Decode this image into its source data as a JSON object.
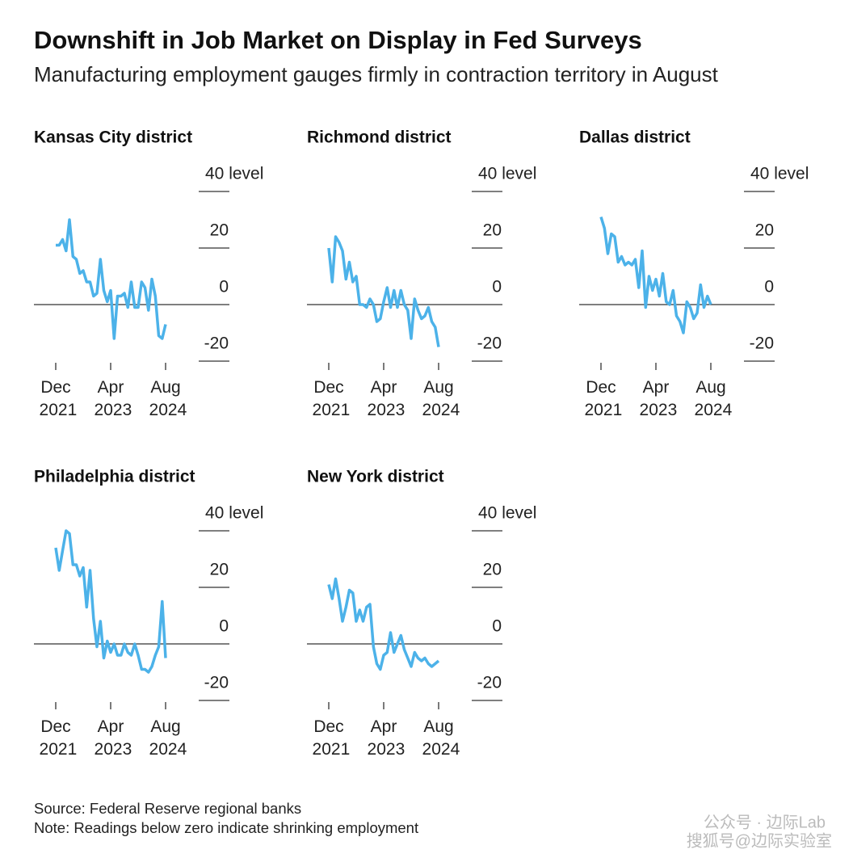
{
  "title": "Downshift in Job Market on Display in Fed Surveys",
  "subtitle": "Manufacturing employment gauges firmly in contraction territory in August",
  "source": "Source: Federal Reserve regional banks",
  "note": "Note: Readings below zero indicate shrinking employment",
  "watermark": [
    "公众号 · 边际Lab",
    "搜狐号@边际实验室"
  ],
  "chart_data": [
    {
      "type": "line",
      "title": "Kansas City district",
      "color": "#4cb2e9",
      "x": [
        "2021-12",
        "2022-01",
        "2022-02",
        "2022-03",
        "2022-04",
        "2022-05",
        "2022-06",
        "2022-07",
        "2022-08",
        "2022-09",
        "2022-10",
        "2022-11",
        "2022-12",
        "2023-01",
        "2023-02",
        "2023-03",
        "2023-04",
        "2023-05",
        "2023-06",
        "2023-07",
        "2023-08",
        "2023-09",
        "2023-10",
        "2023-11",
        "2023-12",
        "2024-01",
        "2024-02",
        "2024-03",
        "2024-04",
        "2024-05",
        "2024-06",
        "2024-07",
        "2024-08"
      ],
      "values": [
        21,
        21,
        23,
        19,
        30,
        17,
        16,
        11,
        12,
        8,
        8,
        3,
        4,
        16,
        5,
        1,
        5,
        -12,
        3,
        3,
        4,
        -1,
        8,
        -1,
        -1,
        8,
        6,
        -2,
        9,
        3,
        -11,
        -12,
        -7
      ],
      "xlim": [
        "2021-12",
        "2024-08"
      ],
      "xticks": [
        {
          "value": "2021-12",
          "label": "Dec 2021"
        },
        {
          "value": "2023-04",
          "label": "Apr 2023"
        },
        {
          "value": "2024-08",
          "label": "Aug 2024"
        }
      ],
      "ylim": [
        -20,
        40
      ],
      "yticks": [
        {
          "value": 40,
          "label": "40 level"
        },
        20,
        0,
        -20
      ]
    },
    {
      "type": "line",
      "title": "Richmond district",
      "color": "#4cb2e9",
      "x": [
        "2021-12",
        "2022-01",
        "2022-02",
        "2022-03",
        "2022-04",
        "2022-05",
        "2022-06",
        "2022-07",
        "2022-08",
        "2022-09",
        "2022-10",
        "2022-11",
        "2022-12",
        "2023-01",
        "2023-02",
        "2023-03",
        "2023-04",
        "2023-05",
        "2023-06",
        "2023-07",
        "2023-08",
        "2023-09",
        "2023-10",
        "2023-11",
        "2023-12",
        "2024-01",
        "2024-02",
        "2024-03",
        "2024-04",
        "2024-05",
        "2024-06",
        "2024-07",
        "2024-08"
      ],
      "values": [
        20,
        8,
        24,
        22,
        19,
        9,
        15,
        8,
        10,
        0,
        0,
        -1,
        2,
        0,
        -6,
        -5,
        1,
        6,
        -1,
        5,
        -1,
        5,
        0,
        -2,
        -12,
        2,
        -2,
        -5,
        -4,
        -1,
        -6,
        -8,
        -15
      ],
      "xlim": [
        "2021-12",
        "2024-08"
      ],
      "xticks": [
        {
          "value": "2021-12",
          "label": "Dec 2021"
        },
        {
          "value": "2023-04",
          "label": "Apr 2023"
        },
        {
          "value": "2024-08",
          "label": "Aug 2024"
        }
      ],
      "ylim": [
        -20,
        40
      ],
      "yticks": [
        {
          "value": 40,
          "label": "40 level"
        },
        20,
        0,
        -20
      ]
    },
    {
      "type": "line",
      "title": "Dallas district",
      "color": "#4cb2e9",
      "x": [
        "2021-12",
        "2022-01",
        "2022-02",
        "2022-03",
        "2022-04",
        "2022-05",
        "2022-06",
        "2022-07",
        "2022-08",
        "2022-09",
        "2022-10",
        "2022-11",
        "2022-12",
        "2023-01",
        "2023-02",
        "2023-03",
        "2023-04",
        "2023-05",
        "2023-06",
        "2023-07",
        "2023-08",
        "2023-09",
        "2023-10",
        "2023-11",
        "2023-12",
        "2024-01",
        "2024-02",
        "2024-03",
        "2024-04",
        "2024-05",
        "2024-06",
        "2024-07",
        "2024-08"
      ],
      "values": [
        31,
        27,
        18,
        25,
        24,
        15,
        17,
        14,
        15,
        14,
        16,
        6,
        19,
        -1,
        10,
        5,
        9,
        3,
        11,
        1,
        0,
        5,
        -4,
        -6,
        -10,
        1,
        -1,
        -5,
        -3,
        7,
        -1,
        3,
        0
      ],
      "xlim": [
        "2021-12",
        "2024-08"
      ],
      "xticks": [
        {
          "value": "2021-12",
          "label": "Dec 2021"
        },
        {
          "value": "2023-04",
          "label": "Apr 2023"
        },
        {
          "value": "2024-08",
          "label": "Aug 2024"
        }
      ],
      "ylim": [
        -20,
        40
      ],
      "yticks": [
        {
          "value": 40,
          "label": "40 level"
        },
        20,
        0,
        -20
      ]
    },
    {
      "type": "line",
      "title": "Philadelphia district",
      "color": "#4cb2e9",
      "x": [
        "2021-12",
        "2022-01",
        "2022-02",
        "2022-03",
        "2022-04",
        "2022-05",
        "2022-06",
        "2022-07",
        "2022-08",
        "2022-09",
        "2022-10",
        "2022-11",
        "2022-12",
        "2023-01",
        "2023-02",
        "2023-03",
        "2023-04",
        "2023-05",
        "2023-06",
        "2023-07",
        "2023-08",
        "2023-09",
        "2023-10",
        "2023-11",
        "2023-12",
        "2024-01",
        "2024-02",
        "2024-03",
        "2024-04",
        "2024-05",
        "2024-06",
        "2024-07",
        "2024-08"
      ],
      "values": [
        34,
        26,
        33,
        40,
        39,
        28,
        28,
        24,
        27,
        13,
        26,
        9,
        -1,
        8,
        -5,
        1,
        -3,
        0,
        -4,
        -4,
        0,
        -3,
        -4,
        0,
        -4,
        -9,
        -9,
        -10,
        -8,
        -4,
        -1,
        15,
        -5
      ],
      "xlim": [
        "2021-12",
        "2024-08"
      ],
      "xticks": [
        {
          "value": "2021-12",
          "label": "Dec 2021"
        },
        {
          "value": "2023-04",
          "label": "Apr 2023"
        },
        {
          "value": "2024-08",
          "label": "Aug 2024"
        }
      ],
      "ylim": [
        -20,
        40
      ],
      "yticks": [
        {
          "value": 40,
          "label": "40 level"
        },
        20,
        0,
        -20
      ]
    },
    {
      "type": "line",
      "title": "New York district",
      "color": "#4cb2e9",
      "x": [
        "2021-12",
        "2022-01",
        "2022-02",
        "2022-03",
        "2022-04",
        "2022-05",
        "2022-06",
        "2022-07",
        "2022-08",
        "2022-09",
        "2022-10",
        "2022-11",
        "2022-12",
        "2023-01",
        "2023-02",
        "2023-03",
        "2023-04",
        "2023-05",
        "2023-06",
        "2023-07",
        "2023-08",
        "2023-09",
        "2023-10",
        "2023-11",
        "2023-12",
        "2024-01",
        "2024-02",
        "2024-03",
        "2024-04",
        "2024-05",
        "2024-06",
        "2024-07",
        "2024-08"
      ],
      "values": [
        21,
        16,
        23,
        16,
        8,
        13,
        19,
        18,
        8,
        12,
        8,
        13,
        14,
        -1,
        -7,
        -9,
        -4,
        -3,
        4,
        -3,
        0,
        3,
        -2,
        -5,
        -8,
        -3,
        -5,
        -6,
        -5,
        -7,
        -8,
        -7,
        -6
      ],
      "xlim": [
        "2021-12",
        "2024-08"
      ],
      "xticks": [
        {
          "value": "2021-12",
          "label": "Dec 2021"
        },
        {
          "value": "2023-04",
          "label": "Apr 2023"
        },
        {
          "value": "2024-08",
          "label": "Aug 2024"
        }
      ],
      "ylim": [
        -20,
        40
      ],
      "yticks": [
        {
          "value": 40,
          "label": "40 level"
        },
        20,
        0,
        -20
      ]
    }
  ]
}
